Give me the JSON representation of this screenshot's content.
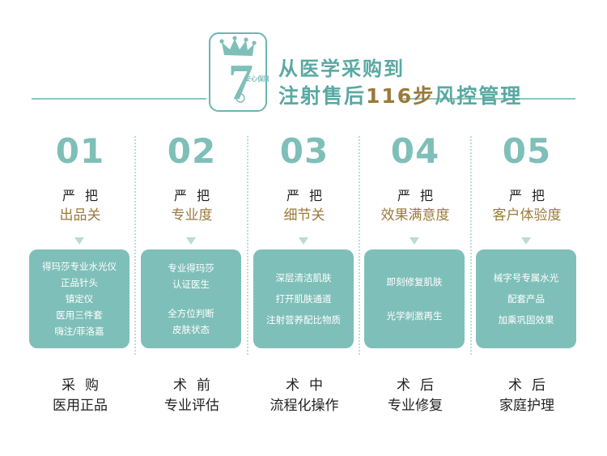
{
  "header": {
    "title_line1": "从医学采购到",
    "title_line2_prefix": "注射售后",
    "title_line2_accent": "116步",
    "title_line2_suffix": "风控管理",
    "logo_number": "7",
    "logo_text": "安心保障"
  },
  "colors": {
    "teal": "#7fbfb9",
    "teal_dark": "#5aa9a3",
    "gold": "#9b7a3a",
    "text": "#222222"
  },
  "columns": [
    {
      "number": "01",
      "strict": "严把",
      "aspect": "出品关",
      "card_lines": [
        "得玛莎专业水光仪",
        "正品针头",
        "镇定仪",
        "医用三件套",
        "嗨注/菲洛嘉"
      ],
      "stage": "采购",
      "stage_desc": "医用正品"
    },
    {
      "number": "02",
      "strict": "严把",
      "aspect": "专业度",
      "card_lines": [
        "专业得玛莎",
        "认证医生",
        "",
        "全方位判断",
        "皮肤状态"
      ],
      "stage": "术前",
      "stage_desc": "专业评估"
    },
    {
      "number": "03",
      "strict": "严把",
      "aspect": "细节关",
      "card_lines": [
        "深层清洁肌肤",
        "打开肌肤通道",
        "注射营养配比物质"
      ],
      "stage": "术中",
      "stage_desc": "流程化操作"
    },
    {
      "number": "04",
      "strict": "严把",
      "aspect": "效果满意度",
      "card_lines": [
        "即刻修复肌肤",
        "光学刺激再生"
      ],
      "stage": "术后",
      "stage_desc": "专业修复"
    },
    {
      "number": "05",
      "strict": "严把",
      "aspect": "客户体验度",
      "card_lines": [
        "械字号专属水光",
        "配套产品",
        "加乘巩固效果"
      ],
      "stage": "术后",
      "stage_desc": "家庭护理"
    }
  ]
}
